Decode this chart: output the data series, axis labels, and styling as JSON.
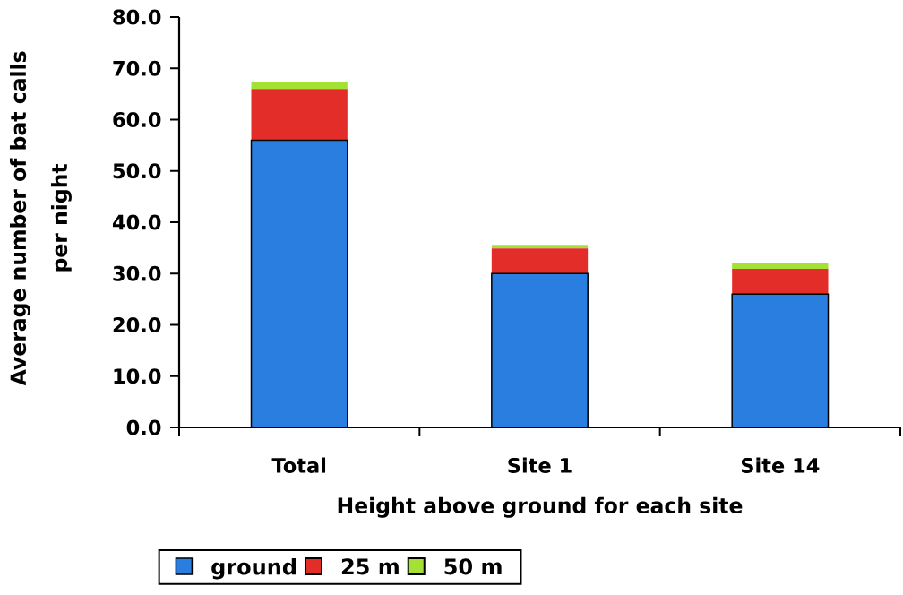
{
  "chart_data": {
    "type": "bar",
    "stacked": true,
    "xlabel": "Height above ground for each site",
    "ylabel": "Average number of bat calls per night",
    "categories": [
      "Total",
      "Site 1",
      "Site 14"
    ],
    "series": [
      {
        "name": "ground",
        "color": "#2a7ee0",
        "values": [
          56,
          30,
          26
        ]
      },
      {
        "name": "25 m",
        "color": "#e32d28",
        "values": [
          10,
          4.9,
          4.9
        ]
      },
      {
        "name": "50 m",
        "color": "#a5e034",
        "values": [
          1.4,
          0.7,
          1.1
        ]
      }
    ],
    "ylim": [
      0,
      80
    ],
    "yticks": [
      {
        "value": 0,
        "label": "0.0"
      },
      {
        "value": 10,
        "label": "10.0"
      },
      {
        "value": 20,
        "label": "20.0"
      },
      {
        "value": 30,
        "label": "30.0"
      },
      {
        "value": 40,
        "label": "40.0"
      },
      {
        "value": 50,
        "label": "50.0"
      },
      {
        "value": 60,
        "label": "60.0"
      },
      {
        "value": 70,
        "label": "70.0"
      },
      {
        "value": 80,
        "label": "80.0"
      }
    ],
    "grid": false,
    "legend": "bottom"
  }
}
